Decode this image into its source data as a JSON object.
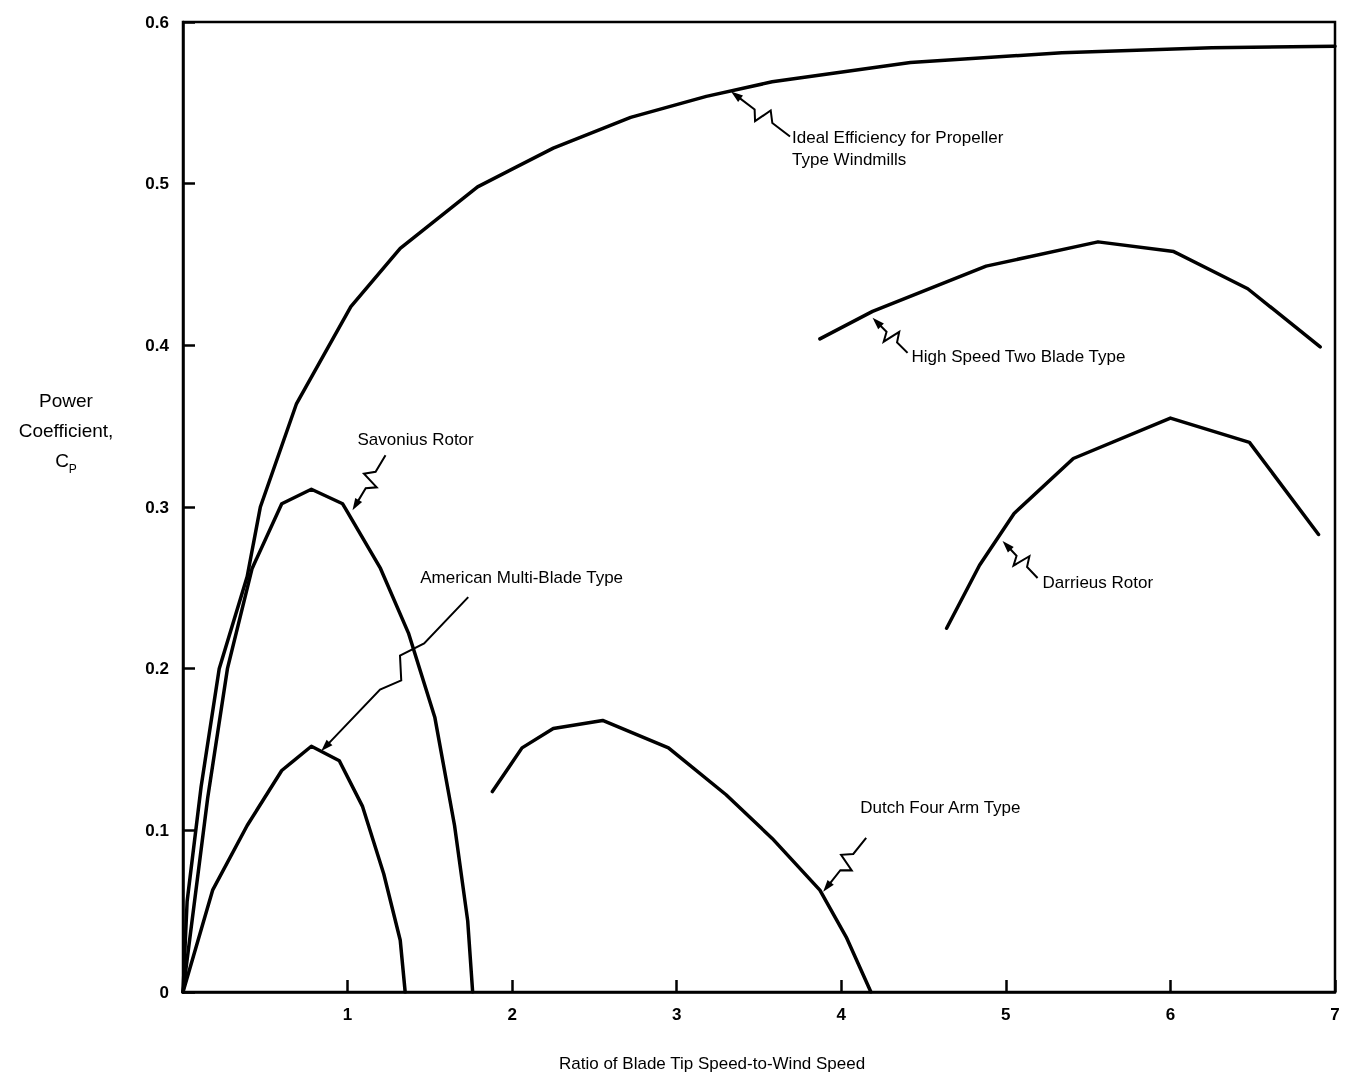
{
  "chart_data": {
    "type": "line",
    "xlabel": "Ratio of Blade Tip Speed-to-Wind Speed",
    "ylabel": "Power Coefficient, C$_{P}$",
    "xlim": [
      0,
      7
    ],
    "ylim": [
      0,
      0.6
    ],
    "xticks": [
      1,
      2,
      3,
      4,
      5,
      6,
      7
    ],
    "yticks": [
      0,
      0.1,
      0.2,
      0.3,
      0.4,
      0.5,
      0.6
    ],
    "series": [
      {
        "color": "#000000",
        "x": [
          0,
          0.025,
          0.11,
          0.22,
          0.39,
          0.47,
          0.69,
          1.02,
          1.32,
          1.79,
          2.25,
          2.72,
          3.18,
          3.58,
          4.42,
          5.34,
          6.25,
          7
        ],
        "values": [
          0,
          0.056,
          0.127,
          0.2,
          0.257,
          0.3,
          0.364,
          0.424,
          0.46,
          0.498,
          0.522,
          0.541,
          0.554,
          0.563,
          0.575,
          0.581,
          0.584,
          0.585
        ]
      },
      {
        "color": "#000000",
        "x": [
          3.87,
          4.19,
          4.88,
          5.56,
          6.02,
          6.47,
          6.91
        ],
        "values": [
          0.404,
          0.421,
          0.449,
          0.464,
          0.458,
          0.435,
          0.399
        ]
      },
      {
        "color": "#000000",
        "x": [
          0,
          0.15,
          0.27,
          0.42,
          0.6,
          0.78,
          0.97,
          1.2,
          1.37,
          1.53,
          1.65,
          1.73,
          1.76
        ],
        "values": [
          0,
          0.12,
          0.2,
          0.262,
          0.302,
          0.311,
          0.302,
          0.262,
          0.222,
          0.17,
          0.103,
          0.044,
          0
        ]
      },
      {
        "color": "#000000",
        "x": [
          0,
          0.18,
          0.39,
          0.6,
          0.78,
          0.95,
          1.09,
          1.22,
          1.32,
          1.35
        ],
        "values": [
          0,
          0.063,
          0.103,
          0.137,
          0.152,
          0.143,
          0.115,
          0.073,
          0.032,
          0
        ]
      },
      {
        "color": "#000000",
        "x": [
          4.64,
          4.84,
          5.05,
          5.41,
          6.0,
          6.48,
          6.9
        ],
        "values": [
          0.225,
          0.264,
          0.296,
          0.33,
          0.355,
          0.34,
          0.283
        ]
      },
      {
        "color": "#000000",
        "x": [
          1.88,
          2.06,
          2.25,
          2.55,
          2.95,
          3.3,
          3.58,
          3.87,
          4.03,
          4.18
        ],
        "values": [
          0.124,
          0.151,
          0.163,
          0.168,
          0.151,
          0.122,
          0.095,
          0.063,
          0.034,
          0
        ]
      }
    ],
    "annotations": [
      {
        "text": "Ideal Efficiency for Propeller Type Windmills",
        "x": 3.33,
        "y": 0.557
      },
      {
        "text": "High Speed Two Blade Type",
        "x": 4.19,
        "y": 0.417
      },
      {
        "text": "Savonius Rotor",
        "x": 1.03,
        "y": 0.298
      },
      {
        "text": "American Multi-Blade Type",
        "x": 0.84,
        "y": 0.149
      },
      {
        "text": "Darrieus Rotor",
        "x": 4.98,
        "y": 0.279
      },
      {
        "text": "Dutch Four Arm Type",
        "x": 3.89,
        "y": 0.062
      }
    ]
  }
}
